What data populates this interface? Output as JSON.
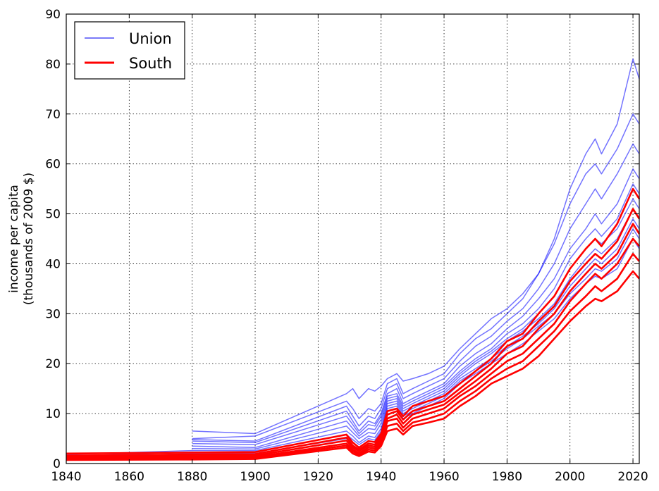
{
  "chart_data": {
    "type": "line",
    "title": "",
    "xlabel": "",
    "ylabel_lines": [
      "income per capita",
      "(thousands of 2009 $)"
    ],
    "xlim": [
      1840,
      2022
    ],
    "ylim": [
      0,
      90
    ],
    "xticks": [
      1840,
      1860,
      1880,
      1900,
      1920,
      1940,
      1960,
      1980,
      2000,
      2020
    ],
    "yticks": [
      0,
      10,
      20,
      30,
      40,
      50,
      60,
      70,
      80,
      90
    ],
    "grid": true,
    "legend_position": "top-left",
    "legend": [
      {
        "name": "Union",
        "color": "#4f4ff5"
      },
      {
        "name": "South",
        "color": "#ff0000"
      }
    ],
    "colors": {
      "union": "#0000ff",
      "south": "#ff0000"
    },
    "anchor_years": [
      1840,
      1880,
      1900,
      1929,
      1931,
      1933,
      1936,
      1938,
      1940,
      1942,
      1945,
      1947,
      1950,
      1955,
      1960,
      1965,
      1970,
      1975,
      1980,
      1985,
      1990,
      1995,
      2000,
      2005,
      2008,
      2010,
      2015,
      2020,
      2022
    ],
    "series": [
      {
        "group": "Union",
        "values": [
          null,
          6.5,
          6.0,
          14.0,
          15.0,
          13.0,
          15.0,
          14.5,
          15.5,
          17.0,
          18.0,
          16.5,
          17.0,
          18.0,
          19.5,
          23.0,
          26.0,
          29.0,
          31.0,
          34.0,
          38.0,
          45.0,
          55.0,
          62.0,
          65.0,
          62.0,
          68.0,
          81.0,
          77.0
        ]
      },
      {
        "group": "Union",
        "values": [
          null,
          5.0,
          5.5,
          12.5,
          11.0,
          9.0,
          11.0,
          10.5,
          12.0,
          16.0,
          17.0,
          14.0,
          15.0,
          16.5,
          18.0,
          22.0,
          25.0,
          27.0,
          30.0,
          33.0,
          38.0,
          44.0,
          52.0,
          58.0,
          60.0,
          58.0,
          63.0,
          70.0,
          68.0
        ]
      },
      {
        "group": "Union",
        "values": [
          null,
          4.8,
          4.5,
          11.5,
          9.5,
          7.5,
          9.5,
          9.0,
          11.0,
          15.0,
          16.0,
          13.0,
          14.0,
          15.5,
          17.0,
          20.5,
          23.5,
          25.5,
          28.5,
          31.0,
          35.0,
          40.0,
          47.0,
          52.0,
          55.0,
          53.0,
          58.0,
          64.0,
          62.0
        ]
      },
      {
        "group": "Union",
        "values": [
          null,
          4.5,
          4.2,
          10.5,
          8.5,
          6.5,
          8.5,
          8.0,
          10.0,
          14.0,
          15.0,
          12.0,
          13.0,
          14.5,
          16.0,
          19.5,
          22.0,
          24.0,
          27.0,
          29.5,
          33.0,
          37.0,
          43.0,
          47.0,
          50.0,
          48.0,
          52.0,
          59.0,
          57.0
        ]
      },
      {
        "group": "Union",
        "values": [
          null,
          4.0,
          3.8,
          9.5,
          7.8,
          6.0,
          7.8,
          7.5,
          9.5,
          13.5,
          14.0,
          11.5,
          12.5,
          14.0,
          15.5,
          18.5,
          21.0,
          23.0,
          26.0,
          28.0,
          31.0,
          35.0,
          41.0,
          45.0,
          47.0,
          45.5,
          49.0,
          56.0,
          54.0
        ]
      },
      {
        "group": "Union",
        "values": [
          null,
          3.5,
          3.2,
          8.5,
          7.0,
          5.5,
          7.0,
          6.8,
          8.8,
          13.0,
          13.5,
          11.0,
          12.0,
          13.5,
          15.0,
          18.0,
          20.5,
          22.5,
          25.0,
          27.0,
          30.0,
          33.5,
          39.0,
          43.0,
          45.0,
          44.0,
          47.0,
          53.0,
          51.0
        ]
      },
      {
        "group": "Union",
        "values": [
          null,
          3.0,
          2.9,
          7.5,
          6.2,
          5.0,
          6.2,
          6.0,
          8.0,
          12.5,
          13.0,
          10.5,
          11.5,
          13.0,
          14.5,
          17.5,
          20.0,
          22.0,
          24.5,
          26.5,
          29.0,
          32.0,
          37.0,
          41.0,
          43.0,
          42.0,
          45.0,
          51.0,
          49.0
        ]
      },
      {
        "group": "Union",
        "values": [
          1.8,
          2.6,
          2.6,
          6.5,
          5.5,
          4.2,
          5.5,
          5.2,
          7.0,
          12.0,
          12.5,
          10.0,
          11.0,
          12.5,
          14.0,
          17.0,
          19.0,
          21.0,
          23.5,
          25.5,
          28.0,
          31.0,
          35.5,
          39.0,
          41.0,
          40.0,
          43.0,
          49.0,
          47.0
        ]
      },
      {
        "group": "Union",
        "values": [
          1.5,
          2.3,
          2.3,
          5.8,
          4.8,
          3.8,
          5.0,
          4.7,
          6.5,
          11.5,
          12.0,
          9.5,
          10.5,
          12.0,
          13.5,
          16.5,
          18.5,
          20.5,
          23.0,
          25.0,
          27.5,
          30.0,
          34.0,
          37.0,
          39.0,
          38.5,
          41.0,
          47.0,
          45.0
        ]
      },
      {
        "group": "Union",
        "values": [
          1.2,
          2.0,
          2.0,
          5.0,
          4.2,
          3.2,
          4.5,
          4.2,
          6.0,
          11.0,
          11.5,
          9.0,
          10.0,
          11.5,
          13.0,
          16.0,
          18.0,
          20.0,
          22.0,
          24.0,
          26.5,
          29.0,
          33.0,
          36.0,
          37.5,
          37.0,
          39.0,
          45.0,
          43.0
        ]
      },
      {
        "group": "South",
        "values": [
          2.0,
          2.2,
          2.3,
          5.8,
          4.2,
          3.2,
          4.5,
          4.3,
          6.0,
          10.5,
          11.0,
          9.5,
          11.5,
          12.5,
          13.5,
          16.0,
          18.5,
          21.0,
          24.5,
          26.0,
          30.0,
          33.5,
          39.0,
          43.0,
          45.0,
          43.5,
          48.0,
          55.0,
          53.0
        ]
      },
      {
        "group": "South",
        "values": [
          1.6,
          1.8,
          1.9,
          5.2,
          3.6,
          2.8,
          4.0,
          3.8,
          5.5,
          9.8,
          10.5,
          8.8,
          10.5,
          11.5,
          12.5,
          15.0,
          17.5,
          20.0,
          23.5,
          25.0,
          28.5,
          31.5,
          36.5,
          40.0,
          42.0,
          41.0,
          44.5,
          51.0,
          49.0
        ]
      },
      {
        "group": "South",
        "values": [
          1.3,
          1.5,
          1.6,
          4.6,
          3.2,
          2.5,
          3.6,
          3.4,
          5.0,
          9.0,
          9.8,
          8.0,
          9.8,
          10.8,
          11.8,
          14.2,
          16.5,
          19.0,
          22.0,
          23.5,
          27.0,
          30.0,
          34.5,
          38.0,
          40.0,
          39.0,
          42.0,
          48.0,
          46.0
        ]
      },
      {
        "group": "South",
        "values": [
          1.1,
          1.2,
          1.3,
          4.0,
          2.8,
          2.1,
          3.2,
          3.0,
          4.5,
          8.5,
          9.0,
          7.2,
          9.0,
          10.0,
          11.0,
          13.5,
          15.5,
          18.0,
          20.5,
          22.0,
          25.0,
          28.0,
          32.5,
          36.0,
          38.0,
          37.0,
          40.0,
          45.0,
          43.5
        ]
      },
      {
        "group": "South",
        "values": [
          0.9,
          1.0,
          1.1,
          3.6,
          2.4,
          1.8,
          2.8,
          2.6,
          4.0,
          7.5,
          8.0,
          6.5,
          8.2,
          9.0,
          10.0,
          12.5,
          14.5,
          17.0,
          19.0,
          20.5,
          23.5,
          26.5,
          30.5,
          33.5,
          35.5,
          34.5,
          37.0,
          42.0,
          40.5
        ]
      },
      {
        "group": "South",
        "values": [
          0.7,
          0.8,
          0.9,
          3.2,
          2.0,
          1.5,
          2.4,
          2.2,
          3.5,
          6.5,
          7.0,
          5.8,
          7.5,
          8.2,
          9.0,
          11.5,
          13.5,
          16.0,
          17.5,
          19.0,
          21.5,
          25.0,
          28.5,
          31.5,
          33.0,
          32.5,
          34.5,
          38.5,
          37.0
        ]
      }
    ]
  }
}
